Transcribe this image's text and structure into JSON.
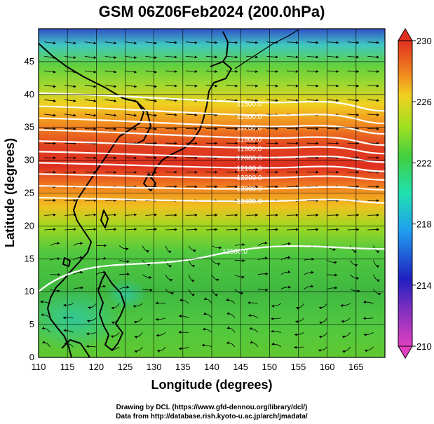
{
  "title": "GSM 06Z06Feb2024 (200.0hPa)",
  "xlabel": "Longitude (degrees)",
  "ylabel": "Latitude (degrees)",
  "credits": [
    "Drawing by DCL (https://www.gfd-dennou.org/library/dcl/)",
    "Data from http://database.rish.kyoto-u.ac.jp/arch/jmadata/"
  ],
  "x_ticks": [
    "110",
    "115",
    "120",
    "125",
    "130",
    "135",
    "140",
    "145",
    "150",
    "155",
    "160",
    "165"
  ],
  "y_ticks": [
    "0",
    "5",
    "10",
    "15",
    "20",
    "25",
    "30",
    "35",
    "40",
    "45"
  ],
  "colorbar_ticks": [
    "210",
    "214",
    "218",
    "222",
    "226",
    "230"
  ],
  "chart_data": {
    "type": "heatmap",
    "title": "GSM 06Z06Feb2024 (200.0hPa)",
    "xlabel": "Longitude (degrees)",
    "ylabel": "Latitude (degrees)",
    "xlim": [
      110,
      170
    ],
    "ylim": [
      0,
      50
    ],
    "color_range": [
      210,
      230
    ],
    "colorbar_ticks": [
      210,
      214,
      218,
      222,
      226,
      230
    ],
    "colorbar_colors": [
      "#e040c0",
      "#2020c0",
      "#20a0f0",
      "#20e0b0",
      "#40d040",
      "#a0e020",
      "#f0d020",
      "#f08020",
      "#e03020"
    ],
    "contour_lines": [
      {
        "label": "11500.0",
        "lat_west": 40.2,
        "lat_east": 37.5
      },
      {
        "label": "11600.0",
        "lat_west": 38.2,
        "lat_east": 35.6
      },
      {
        "label": "11700.0",
        "lat_west": 36.4,
        "lat_east": 34.0
      },
      {
        "label": "11800.0",
        "lat_west": 34.6,
        "lat_east": 32.3
      },
      {
        "label": "11900.0",
        "lat_west": 32.9,
        "lat_east": 31.0
      },
      {
        "label": "12000.0",
        "lat_west": 31.3,
        "lat_east": 29.7
      },
      {
        "label": "12100.0",
        "lat_west": 29.6,
        "lat_east": 28.3
      },
      {
        "label": "12200.0",
        "lat_west": 27.9,
        "lat_east": 27.0
      },
      {
        "label": "12300.0",
        "lat_west": 26.1,
        "lat_east": 25.5
      },
      {
        "label": "12400.0",
        "lat_west": 24.3,
        "lat_east": 23.5
      },
      {
        "label": "12500.0",
        "lat_west": 13.0,
        "lat_east": 16.5
      }
    ],
    "temperature_field": [
      {
        "lat": 50,
        "value": 216
      },
      {
        "lat": 47,
        "value": 221
      },
      {
        "lat": 44,
        "value": 222
      },
      {
        "lat": 40,
        "value": 224
      },
      {
        "lat": 37,
        "value": 227
      },
      {
        "lat": 33,
        "value": 229
      },
      {
        "lat": 30,
        "value": 227
      },
      {
        "lat": 27,
        "value": 225
      },
      {
        "lat": 24,
        "value": 223
      },
      {
        "lat": 20,
        "value": 222
      },
      {
        "lat": 15,
        "value": 221
      },
      {
        "lat": 10,
        "value": 221.5
      },
      {
        "lat": 5,
        "value": 222
      },
      {
        "lat": 0,
        "value": 222
      }
    ],
    "wind": "streamlines (westerly jet north of 20N, easterly/anticyclonic flow south of 15N)"
  }
}
